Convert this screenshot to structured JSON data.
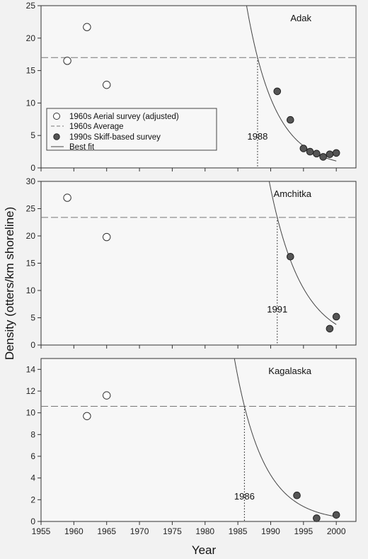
{
  "chart_data": {
    "type": "scatter",
    "xlabel": "Year",
    "ylabel": "Density (otters/km shoreline)",
    "xlim": [
      1955,
      2003
    ],
    "xticks": [
      1955,
      1960,
      1965,
      1970,
      1975,
      1980,
      1985,
      1990,
      1995,
      2000
    ],
    "legend": {
      "placement": "left, inside top panel",
      "entries": [
        {
          "marker": "open-circle",
          "label": "1960s Aerial survey (adjusted)"
        },
        {
          "marker": "dash",
          "label": "1960s Average"
        },
        {
          "marker": "filled-circle",
          "label": "1990s Skiff-based survey"
        },
        {
          "marker": "line",
          "label": "Best fit"
        }
      ]
    },
    "panels": [
      {
        "title": "Adak",
        "ylim": [
          0,
          25
        ],
        "yticks": [
          0,
          5,
          10,
          15,
          20,
          25
        ],
        "aerial_1960s": [
          [
            1959,
            16.5
          ],
          [
            1962,
            21.7
          ],
          [
            1965,
            12.8
          ]
        ],
        "average_1960s": 17.0,
        "skiff_1990s": [
          [
            1991,
            11.8
          ],
          [
            1993,
            7.4
          ],
          [
            1995,
            3.0
          ],
          [
            1996,
            2.5
          ],
          [
            1997,
            2.2
          ],
          [
            1998,
            1.7
          ],
          [
            1999,
            2.1
          ],
          [
            2000,
            2.3
          ]
        ],
        "best_fit": {
          "a": 17.0,
          "b": 0.2306,
          "x0": 1988,
          "xmax": 2000
        },
        "intercept_year": 1988,
        "annotation": "1988"
      },
      {
        "title": "Amchitka",
        "ylim": [
          0,
          30
        ],
        "yticks": [
          0,
          5,
          10,
          15,
          20,
          25,
          30
        ],
        "aerial_1960s": [
          [
            1959,
            27.0
          ],
          [
            1965,
            19.8
          ]
        ],
        "average_1960s": 23.4,
        "skiff_1990s": [
          [
            1993,
            16.2
          ],
          [
            1999,
            3.0
          ],
          [
            2000,
            5.2
          ]
        ],
        "best_fit": {
          "a": 23.4,
          "b": 0.2031,
          "x0": 1991,
          "xmax": 2000
        },
        "intercept_year": 1991,
        "annotation": "1991"
      },
      {
        "title": "Kagalaska",
        "ylim": [
          0,
          15
        ],
        "yticks": [
          0,
          2,
          4,
          6,
          8,
          10,
          12,
          14
        ],
        "aerial_1960s": [
          [
            1962,
            9.7
          ],
          [
            1965,
            11.6
          ]
        ],
        "average_1960s": 10.6,
        "skiff_1990s": [
          [
            1994,
            2.4
          ],
          [
            1997,
            0.3
          ],
          [
            2000,
            0.6
          ]
        ],
        "best_fit": {
          "a": 10.6,
          "b": 0.2271,
          "x0": 1986,
          "xmax": 2000
        },
        "intercept_year": 1986,
        "annotation": "1986"
      }
    ]
  }
}
